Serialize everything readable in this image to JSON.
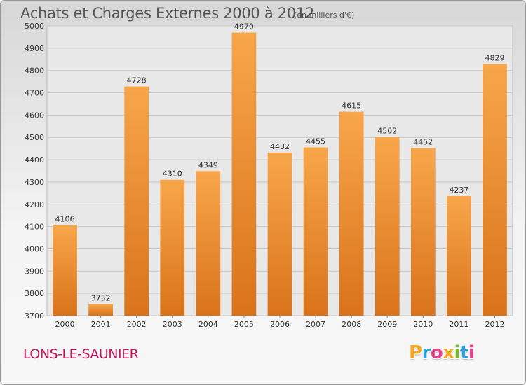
{
  "chart_data": {
    "type": "bar",
    "title": "Achats et Charges Externes 2000 à 2012",
    "subtitle": "(en milliers d'€)",
    "categories": [
      "2000",
      "2001",
      "2002",
      "2003",
      "2004",
      "2005",
      "2006",
      "2007",
      "2008",
      "2009",
      "2010",
      "2011",
      "2012"
    ],
    "values": [
      4106,
      3752,
      4728,
      4310,
      4349,
      4970,
      4432,
      4455,
      4615,
      4502,
      4452,
      4237,
      4829
    ],
    "ylim": [
      3700,
      5000
    ],
    "yticks": [
      3700,
      3800,
      3900,
      4000,
      4100,
      4200,
      4300,
      4400,
      4500,
      4600,
      4700,
      4800,
      4900,
      5000
    ],
    "grid": true,
    "bar_color": "#f0952f"
  },
  "footer": {
    "city": "LONS-LE-SAUNIER",
    "logo_letters": [
      "P",
      "r",
      "o",
      "x",
      "i",
      "t",
      "i"
    ],
    "logo_colors": [
      "#f5a623",
      "#2e9fd8",
      "#e83e8c",
      "#f5a623",
      "#79b928",
      "#2e9fd8",
      "#e83e8c"
    ]
  }
}
